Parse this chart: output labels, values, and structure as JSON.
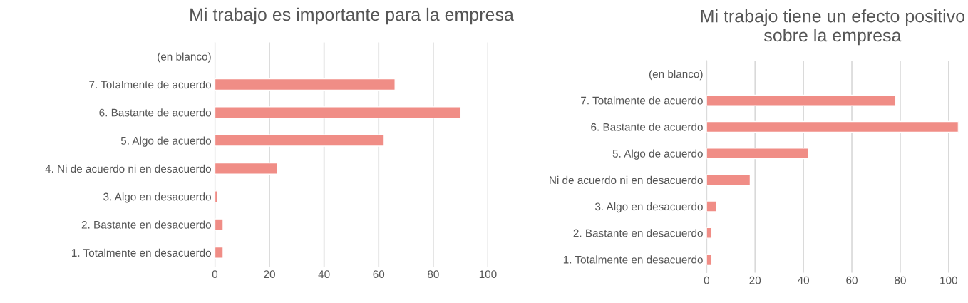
{
  "chart_data": [
    {
      "type": "bar",
      "orientation": "horizontal",
      "title": "Mi trabajo es importante para la empresa",
      "categories": [
        "(en blanco)",
        "7. Totalmente de acuerdo",
        "6. Bastante de acuerdo",
        "5. Algo de acuerdo",
        "4. Ni de acuerdo ni en desacuerdo",
        "3. Algo en desacuerdo",
        "2. Bastante en desacuerdo",
        "1. Totalmente en desacuerdo"
      ],
      "values": [
        null,
        66,
        90,
        62,
        23,
        1,
        3,
        3
      ],
      "color": "#f08d86",
      "xlim": [
        0,
        100
      ],
      "xticks": [
        0,
        20,
        40,
        60,
        80,
        100
      ],
      "grid": "x",
      "legend": false
    },
    {
      "type": "bar",
      "orientation": "horizontal",
      "title": "Mi trabajo tiene un efecto positivo sobre la empresa",
      "categories": [
        "(en blanco)",
        "7. Totalmente de acuerdo",
        "6. Bastante de acuerdo",
        "5. Algo de acuerdo",
        "Ni de acuerdo ni en desacuerdo",
        "3. Algo en desacuerdo",
        "2. Bastante en desacuerdo",
        "1. Totalmente en desacuerdo"
      ],
      "values": [
        null,
        78,
        104,
        42,
        18,
        4,
        2,
        2
      ],
      "color": "#f08d86",
      "xlim": [
        0,
        104
      ],
      "xticks": [
        0,
        20,
        40,
        60,
        80,
        100
      ],
      "grid": "x",
      "legend": false
    }
  ]
}
